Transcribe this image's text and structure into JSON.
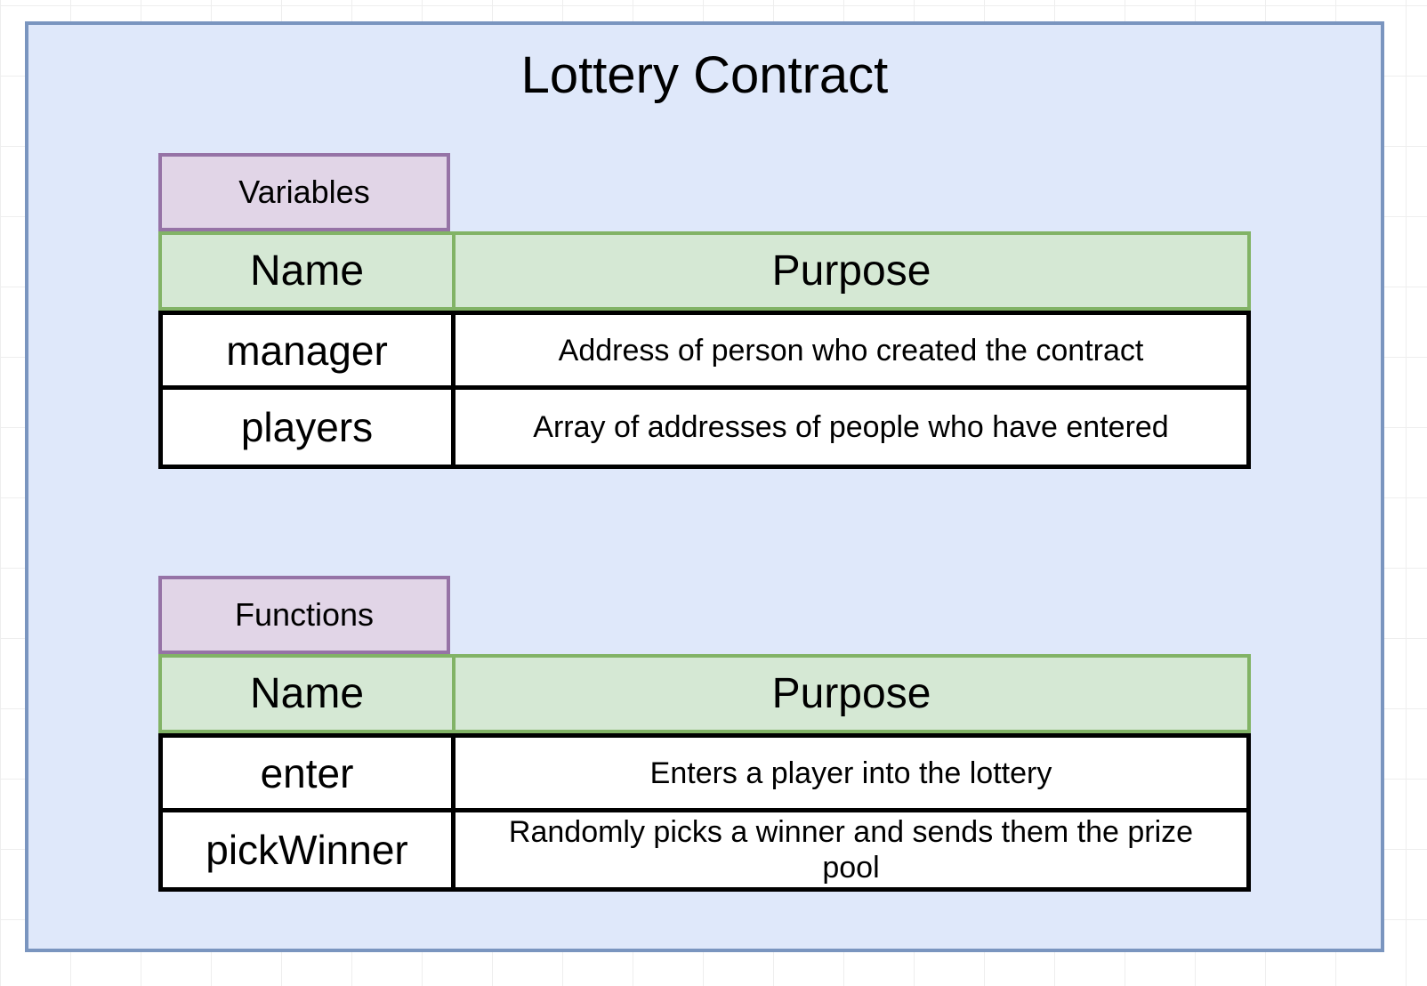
{
  "title": "Lottery Contract",
  "variables": {
    "label": "Variables",
    "header": {
      "name": "Name",
      "purpose": "Purpose"
    },
    "rows": [
      {
        "name": "manager",
        "purpose": "Address of person who created the contract"
      },
      {
        "name": "players",
        "purpose": "Array of addresses of people who have entered"
      }
    ]
  },
  "functions": {
    "label": "Functions",
    "header": {
      "name": "Name",
      "purpose": "Purpose"
    },
    "rows": [
      {
        "name": "enter",
        "purpose": "Enters a player into the lottery"
      },
      {
        "name": "pickWinner",
        "purpose": "Randomly picks a winner and sends them the prize pool"
      }
    ]
  },
  "colors": {
    "container_fill": "#dfe8fa",
    "container_border": "#7a95bf",
    "tab_fill": "#e1d5e7",
    "tab_border": "#9673a6",
    "header_fill": "#d5e8d4",
    "header_border": "#82b366"
  }
}
